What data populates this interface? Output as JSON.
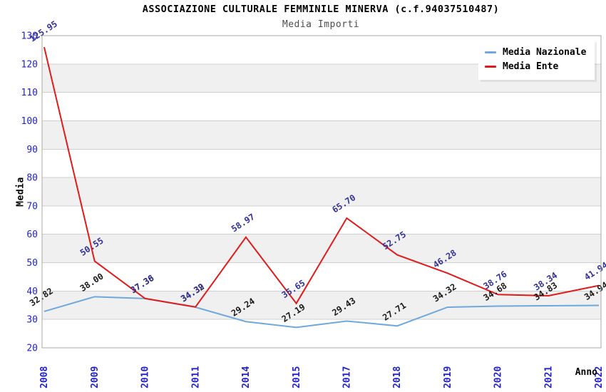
{
  "header": {
    "title": "ASSOCIAZIONE CULTURALE FEMMINILE MINERVA (c.f.94037510487)",
    "subtitle": "Media Importi"
  },
  "chart_data": {
    "type": "line",
    "title": "ASSOCIAZIONE CULTURALE FEMMINILE MINERVA (c.f.94037510487)",
    "subtitle": "Media Importi",
    "xlabel": "Anno",
    "ylabel": "Media",
    "ylim": [
      20,
      130
    ],
    "ytick_step": 10,
    "grid": "horizontal-bands",
    "legend_position": "top-right",
    "band_colors": [
      "#ffffff",
      "#f0f0f0"
    ],
    "gridline_color": "#cfcfcf",
    "border_color": "#a8a8a8",
    "tick_label_color": "#2222cc",
    "categories": [
      "2008",
      "2009",
      "2010",
      "2011",
      "2014",
      "2015",
      "2017",
      "2018",
      "2019",
      "2020",
      "2021",
      "2022"
    ],
    "series": [
      {
        "name": "Media Nazionale",
        "color": "#6fa8dc",
        "label_color": "#1a1a1a",
        "values": [
          32.82,
          38.0,
          37.36,
          34.32,
          29.24,
          27.19,
          29.43,
          27.71,
          34.32,
          34.68,
          34.83,
          34.94
        ]
      },
      {
        "name": "Media Ente",
        "color": "#e01b1b",
        "label_color": "#333399",
        "values": [
          125.95,
          50.55,
          37.38,
          34.39,
          58.97,
          35.65,
          65.7,
          52.75,
          46.28,
          38.76,
          38.34,
          41.94
        ]
      }
    ]
  }
}
